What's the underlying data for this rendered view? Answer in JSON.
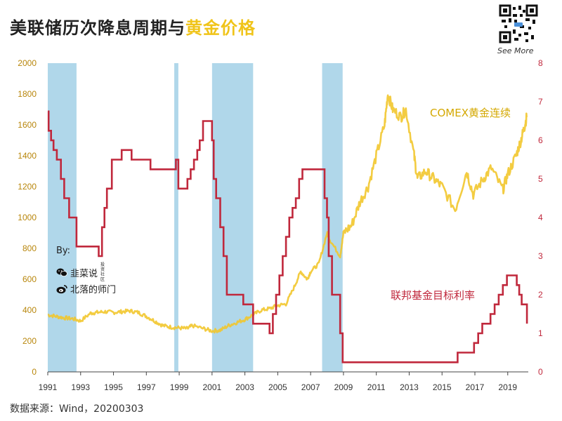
{
  "title_main": "美联储历次降息周期与",
  "title_highlight": "黄金价格",
  "see_more": "See More",
  "source": "数据来源：Wind，20200303",
  "by_label": "By:",
  "social": [
    {
      "name": "韭菜说",
      "sub": "投资社区",
      "icon": "wechat-icon"
    },
    {
      "name": "北落的师门",
      "sub": "",
      "icon": "weibo-icon"
    }
  ],
  "colors": {
    "gold": "#f2c62c",
    "rate": "#c0283c",
    "shade": "#6fb6d8",
    "axis_left": "#b8860b",
    "axis_right": "#c0283c"
  },
  "chart_data": {
    "type": "line",
    "x_range": [
      1991,
      2020.25
    ],
    "x_ticks": [
      "1991",
      "1993",
      "1995",
      "1997",
      "1999",
      "2001",
      "2003",
      "2005",
      "2007",
      "2009",
      "2011",
      "2013",
      "2015",
      "2017",
      "2019"
    ],
    "y_left": {
      "range": [
        0,
        2000
      ],
      "ticks": [
        "0",
        "200",
        "400",
        "600",
        "800",
        "1000",
        "1200",
        "1400",
        "1600",
        "1800",
        "2000"
      ]
    },
    "y_right": {
      "range": [
        0,
        8
      ],
      "ticks": [
        "0",
        "1",
        "2",
        "3",
        "4",
        "5",
        "6",
        "7",
        "8"
      ]
    },
    "cut_periods": [
      [
        1991.0,
        1992.75
      ],
      [
        1998.7,
        1998.95
      ],
      [
        2001.0,
        2003.5
      ],
      [
        2007.7,
        2008.95
      ]
    ],
    "series": [
      {
        "name": "COMEX黄金连续",
        "axis": "left",
        "x": [
          1991.0,
          1991.5,
          1992.0,
          1992.5,
          1993.0,
          1993.6,
          1994.0,
          1994.5,
          1995.0,
          1995.5,
          1996.0,
          1996.5,
          1997.0,
          1997.5,
          1998.0,
          1998.5,
          1999.0,
          1999.5,
          1999.8,
          2000.5,
          2001.0,
          2001.5,
          2002.0,
          2002.5,
          2003.0,
          2003.5,
          2004.0,
          2004.5,
          2005.0,
          2005.5,
          2006.0,
          2006.4,
          2006.8,
          2007.0,
          2007.5,
          2008.0,
          2008.2,
          2008.8,
          2009.0,
          2009.5,
          2010.0,
          2010.5,
          2011.0,
          2011.5,
          2011.7,
          2012.0,
          2012.5,
          2012.8,
          2013.3,
          2013.5,
          2014.0,
          2014.5,
          2015.0,
          2015.8,
          2016.5,
          2016.9,
          2017.5,
          2018.0,
          2018.7,
          2019.0,
          2019.5,
          2019.8,
          2020.0,
          2020.15
        ],
        "y": [
          370,
          360,
          350,
          345,
          330,
          380,
          385,
          390,
          385,
          390,
          395,
          385,
          360,
          330,
          300,
          290,
          285,
          280,
          300,
          280,
          265,
          270,
          300,
          320,
          340,
          370,
          400,
          410,
          430,
          440,
          550,
          650,
          600,
          650,
          700,
          900,
          850,
          750,
          900,
          950,
          1100,
          1200,
          1400,
          1600,
          1800,
          1700,
          1650,
          1700,
          1400,
          1250,
          1300,
          1250,
          1200,
          1050,
          1300,
          1150,
          1250,
          1320,
          1180,
          1280,
          1400,
          1500,
          1580,
          1650
        ]
      },
      {
        "name": "联邦基金目标利率",
        "axis": "right",
        "step": true,
        "x": [
          1991.0,
          1991.05,
          1991.2,
          1991.35,
          1991.55,
          1991.8,
          1992.0,
          1992.3,
          1992.75,
          1994.1,
          1994.3,
          1994.45,
          1994.6,
          1994.9,
          1995.5,
          1996.1,
          1997.25,
          1998.8,
          1998.95,
          1999.05,
          1999.5,
          1999.7,
          1999.9,
          2000.1,
          2000.25,
          2000.45,
          2001.0,
          2001.1,
          2001.25,
          2001.5,
          2001.7,
          2001.9,
          2002.9,
          2003.5,
          2004.5,
          2004.7,
          2004.9,
          2005.1,
          2005.3,
          2005.5,
          2005.7,
          2005.9,
          2006.1,
          2006.3,
          2006.5,
          2007.7,
          2007.85,
          2008.0,
          2008.1,
          2008.3,
          2008.8,
          2008.95,
          2015.95,
          2016.95,
          2017.2,
          2017.45,
          2017.95,
          2018.2,
          2018.45,
          2018.7,
          2018.95,
          2019.55,
          2019.7,
          2019.85,
          2020.17
        ],
        "y": [
          6.75,
          6.25,
          6.0,
          5.75,
          5.5,
          5.0,
          4.5,
          4.0,
          3.25,
          3.0,
          3.75,
          4.25,
          4.75,
          5.5,
          5.75,
          5.5,
          5.25,
          5.5,
          4.75,
          4.75,
          5.0,
          5.25,
          5.5,
          5.75,
          6.0,
          6.5,
          6.0,
          5.0,
          4.5,
          3.75,
          3.0,
          2.0,
          1.75,
          1.25,
          1.0,
          1.5,
          2.0,
          2.5,
          3.0,
          3.5,
          4.0,
          4.25,
          4.5,
          5.0,
          5.25,
          5.25,
          4.5,
          4.0,
          3.0,
          2.0,
          1.0,
          0.25,
          0.5,
          0.75,
          1.0,
          1.25,
          1.5,
          1.75,
          2.0,
          2.25,
          2.5,
          2.25,
          2.0,
          1.75,
          1.25
        ]
      }
    ]
  }
}
